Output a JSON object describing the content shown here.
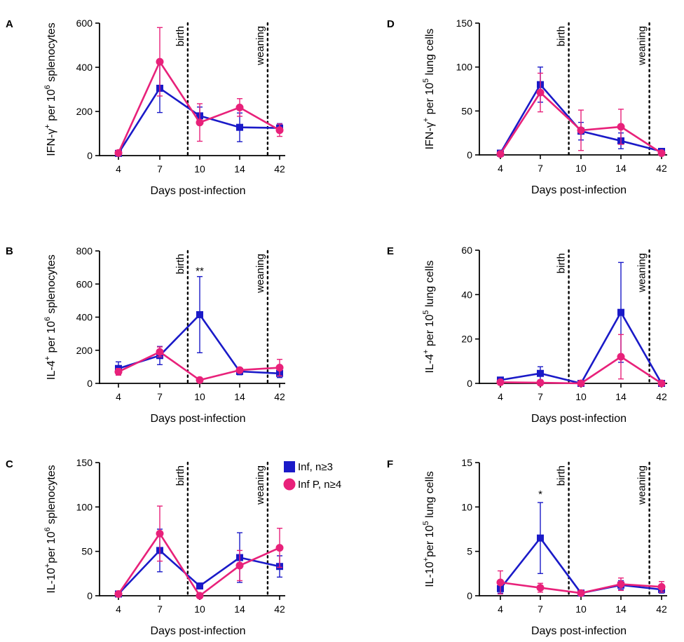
{
  "colors": {
    "inf": "#1a1ac8",
    "infp": "#e8217a",
    "axis": "#000000"
  },
  "legend": {
    "entries": [
      {
        "label": "Inf, n≥3",
        "series": "inf",
        "marker": "square"
      },
      {
        "label": "Inf P, n≥4",
        "series": "infp",
        "marker": "circle"
      }
    ]
  },
  "chart_data": [
    {
      "panel": "A",
      "type": "line",
      "ylabel": {
        "pre": "IFN-γ",
        "sup1": "+",
        "mid": " per 10",
        "sup2": "6",
        "post": " splenocytes"
      },
      "xlabel": "Days post-infection",
      "categories": [
        "4",
        "7",
        "10",
        "14",
        "42"
      ],
      "ylim": [
        0,
        600
      ],
      "yticks": [
        0,
        200,
        400,
        600
      ],
      "markers": [
        {
          "label": "birth",
          "pos": 1.7
        },
        {
          "label": "weaning",
          "pos": 3.7
        }
      ],
      "series": [
        {
          "name": "Inf, n≥3",
          "key": "inf",
          "marker": "square",
          "values": [
            10,
            305,
            180,
            128,
            125
          ],
          "err": [
            3,
            110,
            40,
            65,
            20
          ]
        },
        {
          "name": "Inf P, n≥4",
          "key": "infp",
          "marker": "circle",
          "values": [
            12,
            425,
            150,
            218,
            115
          ],
          "err": [
            4,
            155,
            85,
            40,
            28
          ]
        }
      ],
      "annotations": []
    },
    {
      "panel": "B",
      "type": "line",
      "ylabel": {
        "pre": "IL-4",
        "sup1": "+",
        "mid": " per 10",
        "sup2": "6",
        "post": " splenocytes"
      },
      "xlabel": "Days post-infection",
      "categories": [
        "4",
        "7",
        "10",
        "14",
        "42"
      ],
      "ylim": [
        0,
        800
      ],
      "yticks": [
        0,
        200,
        400,
        600,
        800
      ],
      "markers": [
        {
          "label": "birth",
          "pos": 1.7
        },
        {
          "label": "weaning",
          "pos": 3.7
        }
      ],
      "series": [
        {
          "name": "Inf, n≥3",
          "key": "inf",
          "marker": "square",
          "values": [
            90,
            168,
            415,
            72,
            60
          ],
          "err": [
            40,
            55,
            230,
            20,
            25
          ]
        },
        {
          "name": "Inf P, n≥4",
          "key": "infp",
          "marker": "circle",
          "values": [
            70,
            190,
            20,
            80,
            95
          ],
          "err": [
            20,
            30,
            5,
            15,
            50
          ]
        }
      ],
      "annotations": [
        {
          "text": "**",
          "index": 2,
          "y": 650
        }
      ]
    },
    {
      "panel": "C",
      "type": "line",
      "ylabel": {
        "pre": "IL-10",
        "sup1": "+",
        "mid": "per 10",
        "sup2": "6",
        "post": " splenocytes"
      },
      "xlabel": "Days post-infection",
      "categories": [
        "4",
        "7",
        "10",
        "14",
        "42"
      ],
      "ylim": [
        0,
        150
      ],
      "yticks": [
        0,
        50,
        100,
        150
      ],
      "markers": [
        {
          "label": "birth",
          "pos": 1.7
        },
        {
          "label": "weaning",
          "pos": 3.7
        }
      ],
      "series": [
        {
          "name": "Inf, n≥3",
          "key": "inf",
          "marker": "square",
          "values": [
            2,
            51,
            11,
            43,
            33
          ],
          "err": [
            1,
            24,
            2,
            28,
            12
          ]
        },
        {
          "name": "Inf P, n≥4",
          "key": "infp",
          "marker": "circle",
          "values": [
            2,
            70,
            0,
            34,
            54
          ],
          "err": [
            1,
            31,
            0,
            17,
            22
          ]
        }
      ],
      "annotations": []
    },
    {
      "panel": "D",
      "type": "line",
      "ylabel": {
        "pre": "IFN-γ",
        "sup1": "+",
        "mid": " per 10",
        "sup2": "5",
        "post": " lung cells"
      },
      "xlabel": "Days post-infection",
      "categories": [
        "4",
        "7",
        "10",
        "14",
        "42"
      ],
      "ylim": [
        0,
        150
      ],
      "yticks": [
        0,
        50,
        100,
        150
      ],
      "markers": [
        {
          "label": "birth",
          "pos": 1.7
        },
        {
          "label": "weaning",
          "pos": 3.7
        }
      ],
      "series": [
        {
          "name": "Inf, n≥3",
          "key": "inf",
          "marker": "square",
          "values": [
            2,
            80,
            27,
            16,
            4
          ],
          "err": [
            1,
            20,
            10,
            9,
            2
          ]
        },
        {
          "name": "Inf P, n≥4",
          "key": "infp",
          "marker": "circle",
          "values": [
            1,
            71,
            28,
            32,
            2
          ],
          "err": [
            1,
            22,
            23,
            20,
            1
          ]
        }
      ],
      "annotations": []
    },
    {
      "panel": "E",
      "type": "line",
      "ylabel": {
        "pre": "IL-4",
        "sup1": "+",
        "mid": " per 10",
        "sup2": "5",
        "post": " lung cells"
      },
      "xlabel": "Days post-infection",
      "categories": [
        "4",
        "7",
        "10",
        "14",
        "42"
      ],
      "ylim": [
        0,
        60
      ],
      "yticks": [
        0,
        20,
        40,
        60
      ],
      "markers": [
        {
          "label": "birth",
          "pos": 1.7
        },
        {
          "label": "weaning",
          "pos": 3.7
        }
      ],
      "series": [
        {
          "name": "Inf, n≥3",
          "key": "inf",
          "marker": "square",
          "values": [
            1.5,
            4.5,
            0,
            32,
            0
          ],
          "err": [
            0.5,
            3,
            0,
            22.5,
            0
          ]
        },
        {
          "name": "Inf P, n≥4",
          "key": "infp",
          "marker": "circle",
          "values": [
            0.5,
            0.3,
            0,
            12,
            0
          ],
          "err": [
            0.3,
            0.2,
            0,
            10,
            0
          ]
        }
      ],
      "annotations": []
    },
    {
      "panel": "F",
      "type": "line",
      "ylabel": {
        "pre": "IL-10",
        "sup1": "+",
        "mid": "per 10",
        "sup2": "5",
        "post": " lung cells"
      },
      "xlabel": "Days post-infection",
      "categories": [
        "4",
        "7",
        "10",
        "14",
        "42"
      ],
      "ylim": [
        0,
        15
      ],
      "yticks": [
        0,
        5,
        10,
        15
      ],
      "markers": [
        {
          "label": "birth",
          "pos": 1.7
        },
        {
          "label": "weaning",
          "pos": 3.7
        }
      ],
      "series": [
        {
          "name": "Inf, n≥3",
          "key": "inf",
          "marker": "square",
          "values": [
            0.8,
            6.5,
            0.3,
            1.2,
            0.7
          ],
          "err": [
            0.5,
            4,
            0.1,
            0.5,
            0.4
          ]
        },
        {
          "name": "Inf P, n≥4",
          "key": "infp",
          "marker": "circle",
          "values": [
            1.5,
            0.9,
            0.3,
            1.3,
            1.0
          ],
          "err": [
            1.3,
            0.5,
            0.1,
            0.7,
            0.6
          ]
        }
      ],
      "annotations": [
        {
          "text": "*",
          "index": 1,
          "y": 10.9
        }
      ]
    }
  ]
}
